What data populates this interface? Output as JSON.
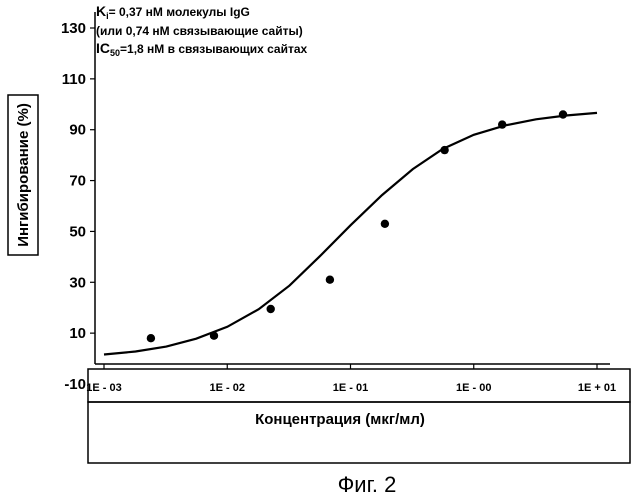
{
  "chart_data": {
    "type": "scatter",
    "title": "",
    "annotations": [
      "0,37 нМ молекулы IgG",
      "(или 0,74 нМ связывающие сайты)",
      "=1,8 нМ в связывающих сайтах"
    ],
    "annotation_prefixes": {
      "ki_main": "K",
      "ki_sub": "i",
      "ic_main": "IC",
      "ic_sub": "50"
    },
    "ylabel": "Ингибирование (%)",
    "xlabel": "Концентрация (мкг/мл)",
    "x_scale": "log",
    "xlim": [
      0.001,
      10
    ],
    "ylim": [
      -10,
      130
    ],
    "ytick_values": [
      -10,
      10,
      30,
      50,
      70,
      90,
      110,
      130
    ],
    "ytick_labels": [
      "-10",
      "10",
      "30",
      "50",
      "70",
      "90",
      "110",
      "130"
    ],
    "xtick_labels": [
      "1E - 03",
      "1E - 02",
      "1E - 01",
      "1E - 00",
      "1E + 01"
    ],
    "grid": false,
    "series": [
      {
        "type": "scatter",
        "x": [
          0.0024,
          0.0078,
          0.0225,
          0.068,
          0.19,
          0.58,
          1.7,
          5.3
        ],
        "y": [
          8,
          9,
          19.5,
          31,
          53,
          82,
          92,
          96
        ]
      },
      {
        "type": "line",
        "x": [
          0.001,
          0.0018,
          0.0032,
          0.0056,
          0.01,
          0.018,
          0.032,
          0.056,
          0.1,
          0.18,
          0.32,
          0.56,
          1,
          1.8,
          3.2,
          5.6,
          10
        ],
        "y": [
          1.6,
          2.8,
          4.7,
          7.8,
          12.5,
          19.4,
          28.7,
          40.1,
          52.4,
          64.3,
          74.5,
          82.4,
          88.0,
          91.7,
          94.1,
          95.6,
          96.6
        ]
      }
    ]
  },
  "caption": "Фиг. 2"
}
